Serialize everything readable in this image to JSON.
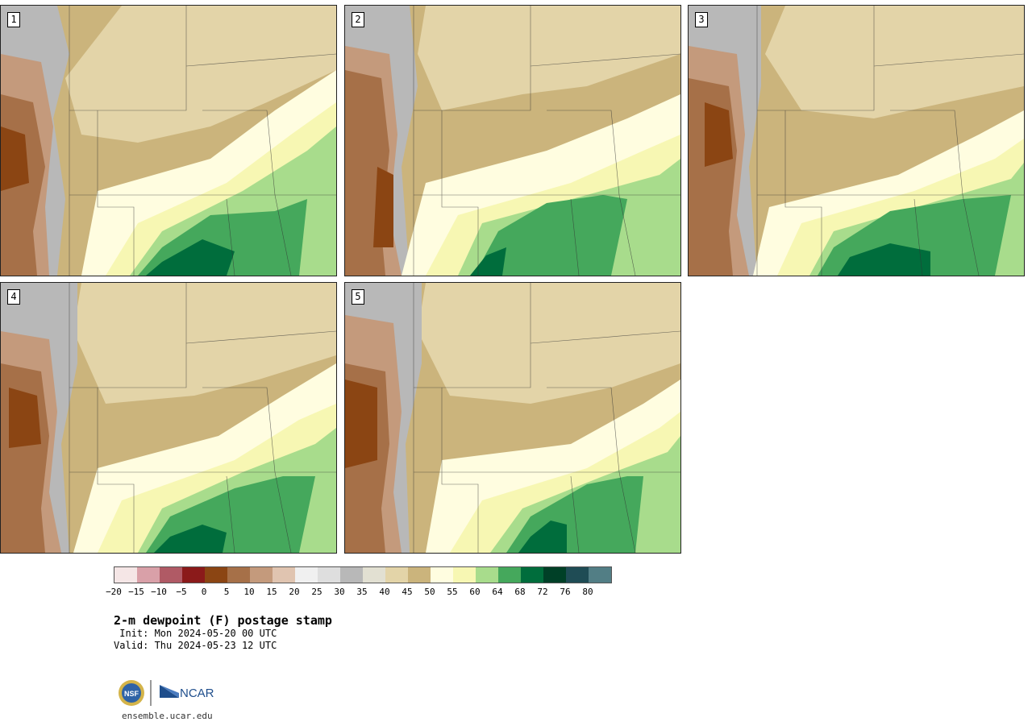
{
  "panels": [
    {
      "label": "1"
    },
    {
      "label": "2"
    },
    {
      "label": "3"
    },
    {
      "label": "4"
    },
    {
      "label": "5"
    }
  ],
  "colorbar": {
    "colors": [
      "#f5e6e6",
      "#d9a0a8",
      "#b05a65",
      "#8b1a1a",
      "#8b4513",
      "#a67048",
      "#c49a7c",
      "#e0c4b0",
      "#f0f0f0",
      "#dedede",
      "#b8b8b8",
      "#e2e0d2",
      "#e3d4a8",
      "#cbb47c",
      "#fffde0",
      "#f7f7b3",
      "#a8dc8c",
      "#45a85c",
      "#006d3c",
      "#004027",
      "#1f4c55",
      "#527e85"
    ],
    "tick_labels": [
      "−20",
      "−15",
      "−10",
      "−5",
      "0",
      "5",
      "10",
      "15",
      "20",
      "25",
      "30",
      "35",
      "40",
      "45",
      "50",
      "55",
      "60",
      "64",
      "68",
      "72",
      "76",
      "80"
    ]
  },
  "title": "2-m dewpoint (F) postage stamp",
  "init": " Init: Mon 2024-05-20 00 UTC",
  "valid": "Valid: Thu 2024-05-23 12 UTC",
  "logo": {
    "nsf_text": "NSF",
    "ncar_text": "NCAR"
  },
  "site": "ensemble.ucar.edu"
}
